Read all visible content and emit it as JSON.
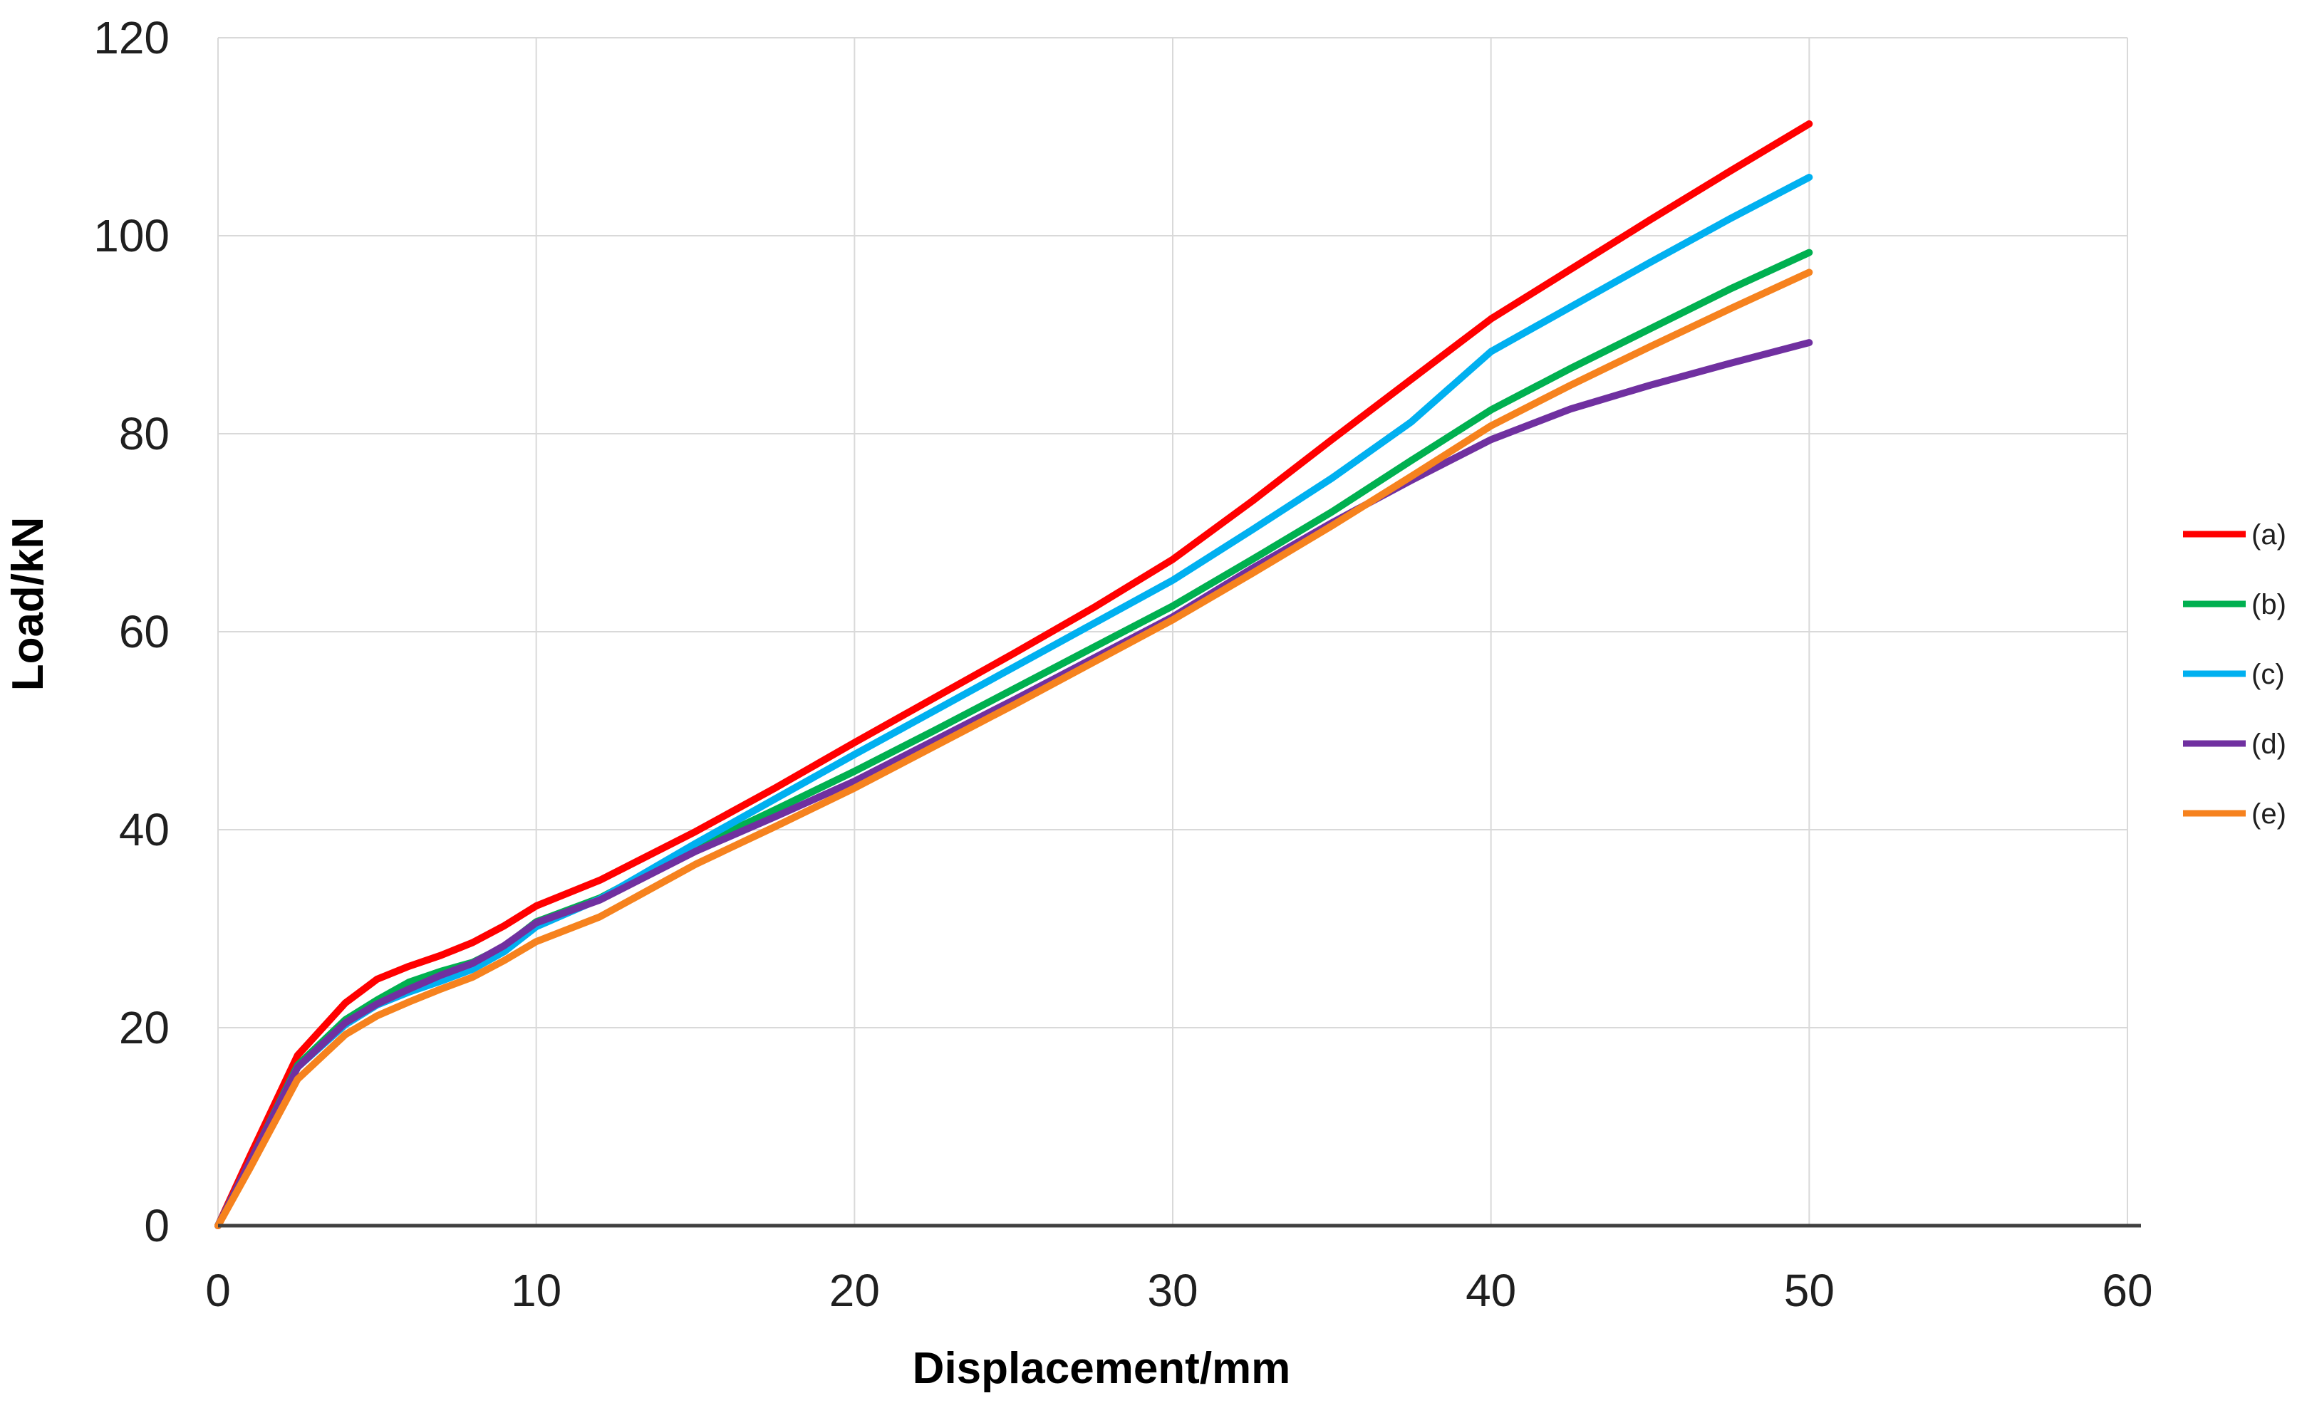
{
  "chart_data": {
    "type": "line",
    "title": "",
    "xlabel": "Displacement/mm",
    "ylabel": "Load/kN",
    "xlim": [
      0,
      60
    ],
    "ylim": [
      0,
      120
    ],
    "x_ticks": [
      0,
      10,
      20,
      30,
      40,
      50,
      60
    ],
    "y_ticks": [
      0,
      20,
      40,
      60,
      80,
      100,
      120
    ],
    "grid": true,
    "legend_position": "right",
    "x": [
      0,
      1,
      2.5,
      4,
      5,
      6,
      7,
      8,
      9,
      10,
      12,
      15,
      17.5,
      20,
      22.5,
      25,
      27.5,
      30,
      32.5,
      35,
      37.5,
      40,
      42.5,
      45,
      47.5,
      50
    ],
    "series": [
      {
        "name": "(a)",
        "color": "#FF0000",
        "values": [
          0,
          7.0,
          17.2,
          22.5,
          24.9,
          26.2,
          27.3,
          28.6,
          30.3,
          32.3,
          34.9,
          39.8,
          44.2,
          48.8,
          53.3,
          57.8,
          62.4,
          67.3,
          73.2,
          79.4,
          85.5,
          91.6,
          96.6,
          101.6,
          106.5,
          111.3
        ]
      },
      {
        "name": "(b)",
        "color": "#00B050",
        "values": [
          0,
          6.4,
          16.2,
          20.8,
          22.8,
          24.6,
          25.7,
          26.6,
          28.2,
          30.7,
          33.1,
          38.2,
          42.0,
          45.9,
          50.0,
          54.2,
          58.4,
          62.6,
          67.3,
          72.1,
          77.3,
          82.4,
          86.6,
          90.6,
          94.6,
          98.3
        ]
      },
      {
        "name": "(c)",
        "color": "#00B0F0",
        "values": [
          0,
          6.4,
          16.0,
          20.3,
          22.3,
          23.6,
          24.7,
          25.9,
          27.7,
          30.2,
          33.0,
          38.6,
          43.1,
          47.6,
          52.0,
          56.4,
          60.8,
          65.2,
          70.3,
          75.5,
          81.2,
          88.3,
          92.8,
          97.3,
          101.7,
          105.9
        ]
      },
      {
        "name": "(d)",
        "color": "#7030A0",
        "values": [
          0,
          6.4,
          16.0,
          20.5,
          22.4,
          23.9,
          25.3,
          26.5,
          28.3,
          30.6,
          32.9,
          37.8,
          41.3,
          44.9,
          49.0,
          53.1,
          57.3,
          61.5,
          66.4,
          71.0,
          75.3,
          79.4,
          82.5,
          84.9,
          87.1,
          89.2
        ]
      },
      {
        "name": "(e)",
        "color": "#F6821E",
        "values": [
          0,
          5.8,
          14.8,
          19.3,
          21.2,
          22.6,
          23.9,
          25.1,
          26.8,
          28.7,
          31.2,
          36.5,
          40.3,
          44.2,
          48.4,
          52.6,
          56.9,
          61.2,
          65.9,
          70.7,
          75.7,
          80.8,
          84.9,
          88.8,
          92.6,
          96.3
        ]
      }
    ]
  },
  "style_colors": {
    "gridline": "#D9D9D9",
    "axis_line": "#404040",
    "tick_text": "#1f1f1f",
    "background": "#FFFFFF"
  }
}
